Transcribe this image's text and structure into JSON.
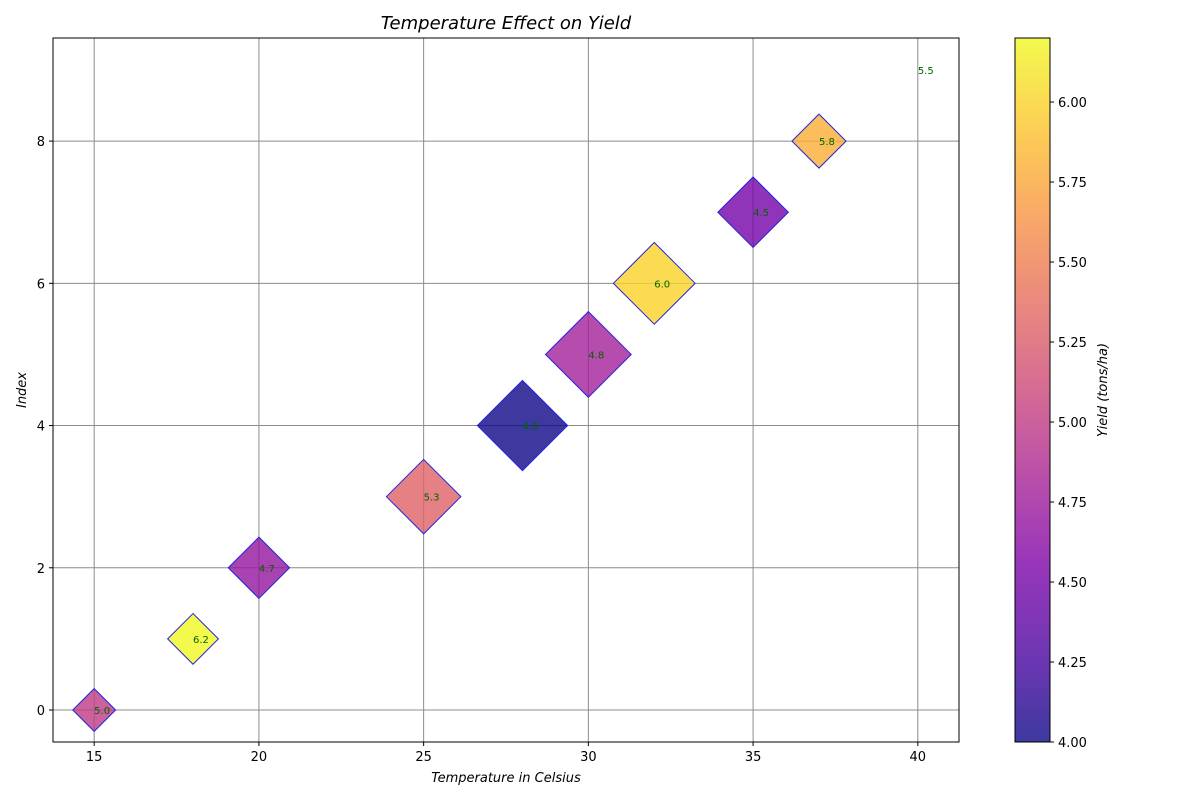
{
  "chart_data": {
    "type": "scatter",
    "title": "Temperature Effect on Yield",
    "xlabel": "Temperature in Celsius",
    "ylabel": "Index",
    "colorbar_label": "Yield (tons/ha)",
    "xlim": [
      13.75,
      41.25
    ],
    "ylim": [
      -0.45,
      9.45
    ],
    "xticks": [
      15,
      20,
      25,
      30,
      35,
      40
    ],
    "yticks": [
      0,
      2,
      4,
      6,
      8
    ],
    "colorbar_range": [
      4.0,
      6.2
    ],
    "colorbar_ticks": [
      "4.00",
      "4.25",
      "4.50",
      "4.75",
      "5.00",
      "5.25",
      "5.50",
      "5.75",
      "6.00"
    ],
    "colormap": "plasma",
    "grid": true,
    "marker": "diamond",
    "edge_color": "#2222dd",
    "label_color": "#006400",
    "points": [
      {
        "x": 15,
        "y": 0,
        "label": "5.0",
        "yield": 5.0,
        "size": 0.65
      },
      {
        "x": 18,
        "y": 1,
        "label": "6.2",
        "yield": 6.2,
        "size": 0.77
      },
      {
        "x": 20,
        "y": 2,
        "label": "4.7",
        "yield": 4.7,
        "size": 0.93
      },
      {
        "x": 25,
        "y": 3,
        "label": "5.3",
        "yield": 5.3,
        "size": 1.13
      },
      {
        "x": 28,
        "y": 4,
        "label": "4.0",
        "yield": 4.0,
        "size": 1.37
      },
      {
        "x": 30,
        "y": 5,
        "label": "4.8",
        "yield": 4.8,
        "size": 1.3
      },
      {
        "x": 32,
        "y": 6,
        "label": "6.0",
        "yield": 6.0,
        "size": 1.24
      },
      {
        "x": 35,
        "y": 7,
        "label": "4.5",
        "yield": 4.5,
        "size": 1.07
      },
      {
        "x": 37,
        "y": 8,
        "label": "5.8",
        "yield": 5.8,
        "size": 0.82
      },
      {
        "x": 40,
        "y": 9,
        "label": "5.5",
        "yield": 5.5,
        "size": 0
      }
    ]
  }
}
